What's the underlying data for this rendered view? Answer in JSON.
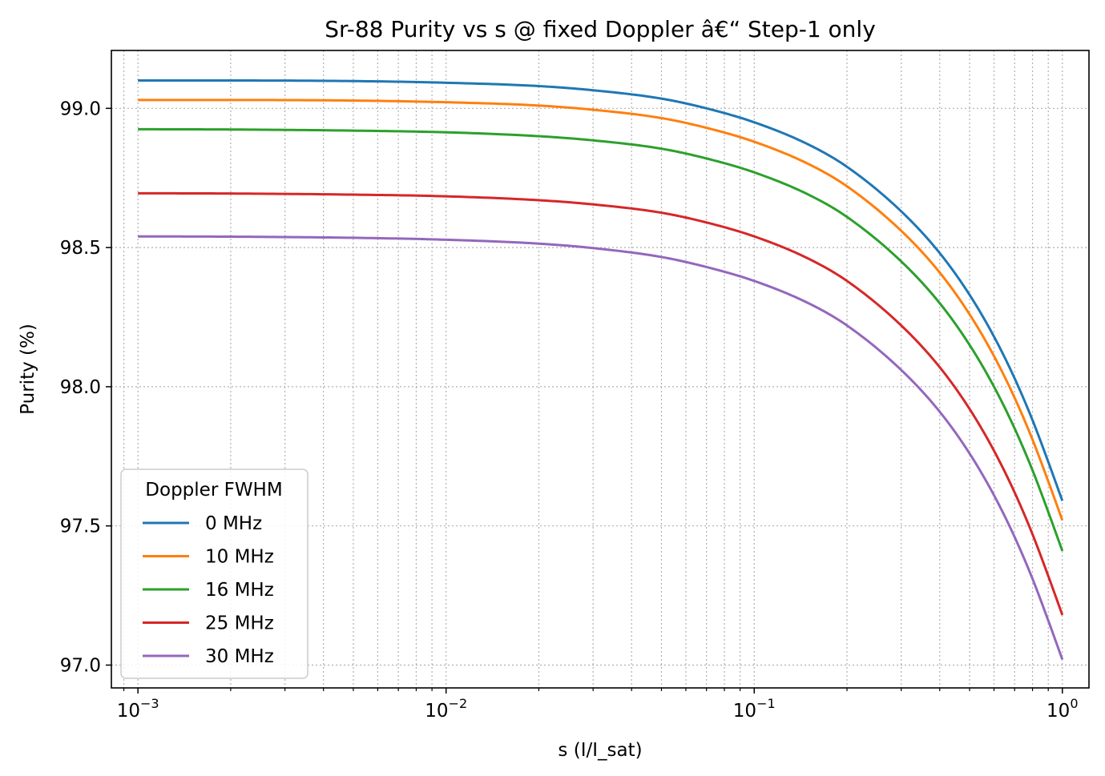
{
  "chart_data": {
    "type": "line",
    "title": "Sr-88 Purity vs s @ fixed Doppler â€“ Step-1 only",
    "xlabel": "s (I/I_sat)",
    "ylabel": "Purity (%)",
    "xscale": "log",
    "xlim": [
      0.00082,
      1.22
    ],
    "ylim": [
      96.918,
      99.208
    ],
    "xticks": [
      {
        "value": 0.001,
        "base": "10",
        "exp": "−3"
      },
      {
        "value": 0.01,
        "base": "10",
        "exp": "−2"
      },
      {
        "value": 0.1,
        "base": "10",
        "exp": "−1"
      },
      {
        "value": 1,
        "base": "10",
        "exp": "0"
      }
    ],
    "yticks": [
      {
        "value": 97.0,
        "label": "97.0"
      },
      {
        "value": 97.5,
        "label": "97.5"
      },
      {
        "value": 98.0,
        "label": "98.0"
      },
      {
        "value": 98.5,
        "label": "98.5"
      },
      {
        "value": 99.0,
        "label": "99.0"
      }
    ],
    "grid": true,
    "grid_minor": true,
    "legend": {
      "title": "Doppler FWHM",
      "placement": "lower-left"
    },
    "series": [
      {
        "name": "0 MHz",
        "color": "#1f77b4",
        "x": [
          0.001,
          0.002,
          0.005,
          0.01,
          0.02,
          0.03,
          0.05,
          0.07,
          0.1,
          0.15,
          0.2,
          0.3,
          0.4,
          0.5,
          0.6,
          0.7,
          0.8,
          0.9,
          1.0
        ],
        "y": [
          99.1,
          99.1,
          99.098,
          99.092,
          99.08,
          99.065,
          99.035,
          99.0,
          98.95,
          98.87,
          98.79,
          98.63,
          98.48,
          98.33,
          98.18,
          98.03,
          97.88,
          97.73,
          97.59
        ]
      },
      {
        "name": "10 MHz",
        "color": "#ff7f0e",
        "x": [
          0.001,
          0.002,
          0.005,
          0.01,
          0.02,
          0.03,
          0.05,
          0.07,
          0.1,
          0.15,
          0.2,
          0.3,
          0.4,
          0.5,
          0.6,
          0.7,
          0.8,
          0.9,
          1.0
        ],
        "y": [
          99.03,
          99.03,
          99.028,
          99.022,
          99.01,
          98.995,
          98.965,
          98.93,
          98.88,
          98.8,
          98.72,
          98.56,
          98.41,
          98.26,
          98.11,
          97.96,
          97.81,
          97.66,
          97.52
        ]
      },
      {
        "name": "16 MHz",
        "color": "#2ca02c",
        "x": [
          0.001,
          0.002,
          0.005,
          0.01,
          0.02,
          0.03,
          0.05,
          0.07,
          0.1,
          0.15,
          0.2,
          0.3,
          0.4,
          0.5,
          0.6,
          0.7,
          0.8,
          0.9,
          1.0
        ],
        "y": [
          98.925,
          98.924,
          98.92,
          98.914,
          98.9,
          98.885,
          98.855,
          98.82,
          98.77,
          98.69,
          98.61,
          98.45,
          98.3,
          98.15,
          98.0,
          97.85,
          97.7,
          97.55,
          97.41
        ]
      },
      {
        "name": "25 MHz",
        "color": "#d62728",
        "x": [
          0.001,
          0.002,
          0.005,
          0.01,
          0.02,
          0.03,
          0.05,
          0.07,
          0.1,
          0.15,
          0.2,
          0.3,
          0.4,
          0.5,
          0.6,
          0.7,
          0.8,
          0.9,
          1.0
        ],
        "y": [
          98.695,
          98.694,
          98.69,
          98.684,
          98.67,
          98.655,
          98.625,
          98.59,
          98.54,
          98.46,
          98.38,
          98.22,
          98.07,
          97.92,
          97.77,
          97.62,
          97.47,
          97.32,
          97.18
        ]
      },
      {
        "name": "30 MHz",
        "color": "#9467bd",
        "x": [
          0.001,
          0.002,
          0.005,
          0.01,
          0.02,
          0.03,
          0.05,
          0.07,
          0.1,
          0.15,
          0.2,
          0.3,
          0.4,
          0.5,
          0.6,
          0.7,
          0.8,
          0.9,
          1.0
        ],
        "y": [
          98.54,
          98.539,
          98.535,
          98.528,
          98.514,
          98.498,
          98.466,
          98.43,
          98.38,
          98.3,
          98.22,
          98.06,
          97.91,
          97.76,
          97.61,
          97.46,
          97.31,
          97.16,
          97.02
        ]
      }
    ]
  }
}
